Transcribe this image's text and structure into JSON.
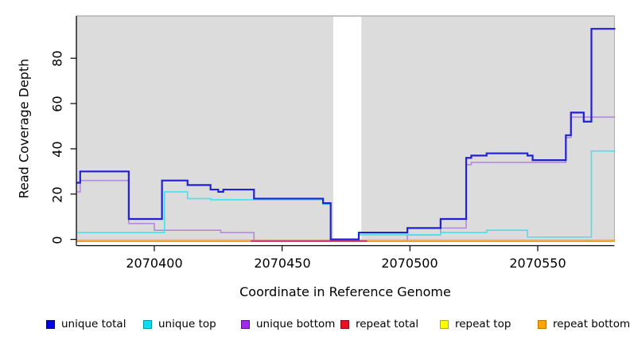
{
  "axes": {
    "xlabel": "Coordinate in Reference Genome",
    "ylabel": "Read Coverage Depth",
    "xtick_labels": [
      "2070400",
      "2070450",
      "2070500",
      "2070550"
    ],
    "ytick_labels": [
      "0",
      "20",
      "40",
      "60",
      "80"
    ]
  },
  "legend": {
    "position": "bottom",
    "items": [
      {
        "label": "unique total",
        "color": "#0000e6",
        "border": "#00006e"
      },
      {
        "label": "unique top",
        "color": "#00e0ee",
        "border": "#0096a8"
      },
      {
        "label": "unique bottom",
        "color": "#a12ce6",
        "border": "#5c1390"
      },
      {
        "label": "repeat total",
        "color": "#e81123",
        "border": "#8e0a12"
      },
      {
        "label": "repeat top",
        "color": "#ffff00",
        "border": "#b4a800"
      },
      {
        "label": "repeat bottom",
        "color": "#ffa500",
        "border": "#b87400"
      }
    ]
  },
  "chart_data": {
    "type": "line",
    "subtype": "step-coverage",
    "title": "",
    "xlabel": "Coordinate in Reference Genome",
    "ylabel": "Read Coverage Depth",
    "xlim": [
      2070370,
      2070580
    ],
    "ylim": [
      0,
      99
    ],
    "xticks": [
      2070400,
      2070450,
      2070500,
      2070550
    ],
    "yticks": [
      0,
      20,
      40,
      60,
      80
    ],
    "grid": false,
    "plot_bg": "#dcdcdc",
    "plot_border": "#a9a9a9",
    "gap_region": {
      "x0": 2070470,
      "x1": 2070481,
      "color": "#ffffff"
    },
    "xend": 2070580,
    "series": [
      {
        "name": "unique total",
        "color": "#2121d3",
        "width": 2.2,
        "skip_zero": false,
        "steps": [
          [
            2070370,
            25
          ],
          [
            2070371,
            30
          ],
          [
            2070390,
            9
          ],
          [
            2070403,
            26
          ],
          [
            2070413,
            24
          ],
          [
            2070422,
            22
          ],
          [
            2070425,
            21
          ],
          [
            2070427,
            22
          ],
          [
            2070439,
            18
          ],
          [
            2070466,
            16
          ],
          [
            2070469,
            0
          ],
          [
            2070480,
            3
          ],
          [
            2070499,
            5
          ],
          [
            2070512,
            9
          ],
          [
            2070522,
            36
          ],
          [
            2070524,
            37
          ],
          [
            2070530,
            38
          ],
          [
            2070546,
            37
          ],
          [
            2070548,
            35
          ],
          [
            2070561,
            46
          ],
          [
            2070563,
            56
          ],
          [
            2070568,
            52
          ],
          [
            2070571,
            93
          ]
        ]
      },
      {
        "name": "unique top",
        "color": "#45e2e8",
        "width": 1.6,
        "skip_zero": true,
        "steps": [
          [
            2070370,
            3
          ],
          [
            2070404,
            21
          ],
          [
            2070413,
            18
          ],
          [
            2070422,
            17.5
          ],
          [
            2070466,
            15.5
          ],
          [
            2070469,
            0
          ],
          [
            2070480,
            2
          ],
          [
            2070512,
            3
          ],
          [
            2070530,
            4
          ],
          [
            2070546,
            1
          ],
          [
            2070571,
            39
          ]
        ]
      },
      {
        "name": "unique bottom",
        "color": "#b489dc",
        "width": 1.6,
        "skip_zero": true,
        "steps": [
          [
            2070370,
            21
          ],
          [
            2070371,
            26
          ],
          [
            2070390,
            7
          ],
          [
            2070400,
            4
          ],
          [
            2070426,
            3
          ],
          [
            2070439,
            0
          ],
          [
            2070499,
            2
          ],
          [
            2070512,
            5
          ],
          [
            2070522,
            33
          ],
          [
            2070524,
            34
          ],
          [
            2070561,
            45
          ],
          [
            2070563,
            54
          ]
        ]
      },
      {
        "name": "repeat total",
        "color": "#c33a68",
        "width": 1.8,
        "skip_zero": false,
        "xend": 2070483,
        "steps": [
          [
            2070438,
            0
          ]
        ]
      },
      {
        "name": "repeat top",
        "color": "#ffff00",
        "width": 1.6,
        "skip_zero": true,
        "steps": [
          [
            2070370,
            0
          ]
        ]
      },
      {
        "name": "repeat bottom",
        "color": "#ffa51e",
        "width": 2.0,
        "skip_zero": false,
        "steps": [
          [
            2070370,
            0
          ]
        ]
      }
    ]
  }
}
